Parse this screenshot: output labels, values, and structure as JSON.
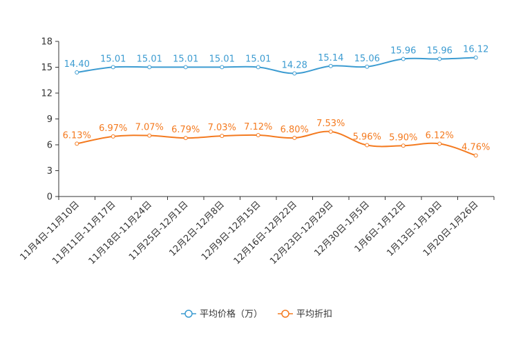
{
  "chart_data": {
    "type": "line",
    "categories": [
      "11月4日-11月10日",
      "11月11日-11月17日",
      "11月18日-11月24日",
      "11月25日-12月1日",
      "12月2日-12月8日",
      "12月9日-12月15日",
      "12月16日-12月22日",
      "12月23日-12月29日",
      "12月30日-1月5日",
      "1月6日-1月12日",
      "1月13日-1月19日",
      "1月20日-1月26日"
    ],
    "y_ticks": [
      "0",
      "3",
      "6",
      "9",
      "12",
      "15",
      "18"
    ],
    "ylim": [
      0,
      18
    ],
    "series": [
      {
        "name": "平均价格（万）",
        "color": "#3b9bd1",
        "values": [
          14.4,
          15.01,
          15.01,
          15.01,
          15.01,
          15.01,
          14.28,
          15.14,
          15.06,
          15.96,
          15.96,
          16.12
        ],
        "labels": [
          "14.40",
          "15.01",
          "15.01",
          "15.01",
          "15.01",
          "15.01",
          "14.28",
          "15.14",
          "15.06",
          "15.96",
          "15.96",
          "16.12"
        ]
      },
      {
        "name": "平均折扣",
        "color": "#f47a1f",
        "values": [
          6.13,
          6.97,
          7.07,
          6.79,
          7.03,
          7.12,
          6.8,
          7.53,
          5.96,
          5.9,
          6.12,
          4.76
        ],
        "labels": [
          "6.13%",
          "6.97%",
          "7.07%",
          "6.79%",
          "7.03%",
          "7.12%",
          "6.80%",
          "7.53%",
          "5.96%",
          "5.90%",
          "6.12%",
          "4.76%"
        ]
      }
    ],
    "legend": {
      "position": "bottom-center"
    }
  }
}
